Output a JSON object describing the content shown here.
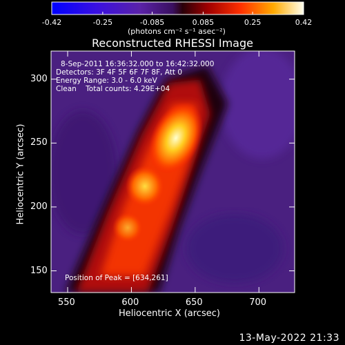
{
  "chart_data": {
    "type": "heatmap",
    "title": "Reconstructed RHESSI Image",
    "xlabel": "Heliocentric X (arcsec)",
    "ylabel": "Heliocentric Y (arcsec)",
    "xlim": [
      537,
      728
    ],
    "ylim": [
      133,
      322
    ],
    "xticks": [
      550,
      600,
      650,
      700
    ],
    "yticks": [
      150,
      200,
      250,
      300
    ],
    "colorbar": {
      "ticks": [
        "-0.42",
        "-0.25",
        "-0.085",
        "0.085",
        "0.25",
        "0.42"
      ],
      "tick_values": [
        -0.42,
        -0.25,
        -0.085,
        0.085,
        0.25,
        0.42
      ],
      "range": [
        -0.42,
        0.42
      ],
      "units": "(photons cm⁻² s⁻¹ asec⁻²)"
    },
    "annotations": {
      "time_range": "8-Sep-2011 16:36:32.000 to 16:42:32.000",
      "detectors": "Detectors: 3F 4F 5F 6F 7F 8F, Att 0",
      "energy": "Energy Range: 3.0 - 6.0 keV",
      "method_counts": "Clean    Total counts: 4.29E+04",
      "peak": "Position of Peak = [634,261]"
    },
    "peak": [
      634,
      261
    ],
    "grid": false
  },
  "footer_timestamp": "13-May-2022 21:33"
}
